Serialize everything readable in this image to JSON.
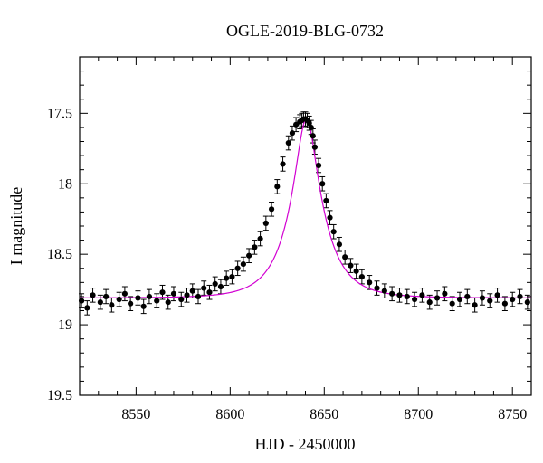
{
  "chart_data": {
    "type": "scatter",
    "title": "OGLE-2019-BLG-0732",
    "xlabel": "HJD - 2450000",
    "ylabel": "I magnitude",
    "xlim": [
      8520,
      8760
    ],
    "ylim": [
      17.1,
      19.5
    ],
    "y_inverted": true,
    "x_ticks": [
      8550,
      8600,
      8650,
      8700,
      8750
    ],
    "y_ticks": [
      17.5,
      18,
      18.5,
      19,
      19.5
    ],
    "x_tick_labels": [
      "8550",
      "8600",
      "8650",
      "8700",
      "8750"
    ],
    "y_tick_labels": [
      "17.5",
      "18",
      "18.5",
      "19",
      "19.5"
    ],
    "grid": false,
    "legend": "none",
    "colors": {
      "points": "#000000",
      "model": "#d200d2",
      "axes": "#000000"
    },
    "model": {
      "style": "line",
      "peak_time": 8640.5,
      "peak_magnitude": 17.54,
      "baseline_magnitude": 18.81
    },
    "series": [
      {
        "x": [
          8521,
          8524,
          8527,
          8531,
          8534,
          8537,
          8541,
          8544,
          8547,
          8551,
          8554,
          8557,
          8561,
          8564,
          8567,
          8570,
          8574,
          8577,
          8580,
          8583,
          8586,
          8589,
          8592,
          8595,
          8598,
          8601,
          8604,
          8607,
          8610,
          8613,
          8616,
          8619,
          8622,
          8625,
          8628,
          8631,
          8633,
          8635,
          8637,
          8638,
          8639,
          8640,
          8641,
          8642,
          8643,
          8644,
          8645,
          8647,
          8649,
          8651,
          8653,
          8655,
          8658,
          8661,
          8664,
          8667,
          8670,
          8674,
          8678,
          8682,
          8686,
          8690,
          8694,
          8698,
          8702,
          8706,
          8710,
          8714,
          8718,
          8722,
          8726,
          8730,
          8734,
          8738,
          8742,
          8746,
          8750,
          8754,
          8758
        ],
        "y": [
          18.83,
          18.88,
          18.79,
          18.84,
          18.8,
          18.86,
          18.82,
          18.78,
          18.85,
          18.81,
          18.87,
          18.8,
          18.83,
          18.77,
          18.84,
          18.78,
          18.82,
          18.79,
          18.76,
          18.8,
          18.74,
          18.77,
          18.71,
          18.73,
          18.67,
          18.66,
          18.6,
          18.57,
          18.51,
          18.45,
          18.39,
          18.28,
          18.18,
          18.02,
          17.86,
          17.71,
          17.64,
          17.58,
          17.56,
          17.55,
          17.54,
          17.54,
          17.55,
          17.57,
          17.6,
          17.66,
          17.74,
          17.87,
          18.0,
          18.12,
          18.24,
          18.34,
          18.43,
          18.52,
          18.58,
          18.62,
          18.66,
          18.7,
          18.74,
          18.76,
          18.78,
          18.79,
          18.8,
          18.82,
          18.79,
          18.84,
          18.81,
          18.78,
          18.85,
          18.82,
          18.8,
          18.86,
          18.81,
          18.83,
          18.79,
          18.85,
          18.82,
          18.8,
          18.84
        ],
        "yerr": 0.05
      }
    ]
  }
}
